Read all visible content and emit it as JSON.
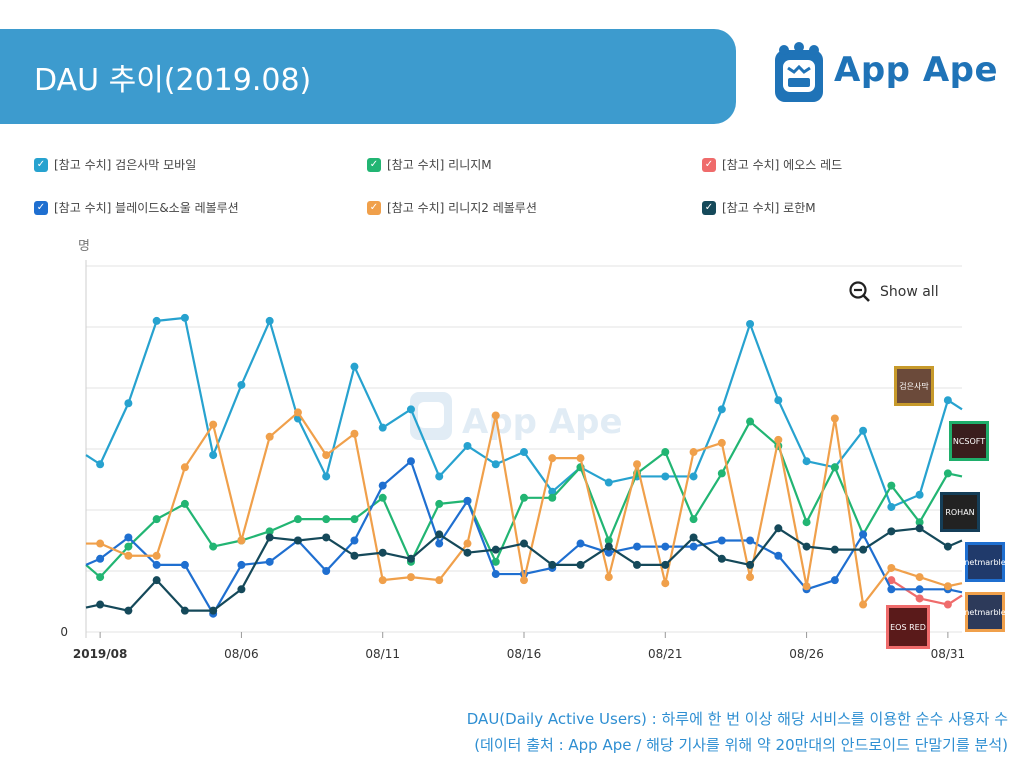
{
  "header": {
    "title": "DAU 추이(2019.08)"
  },
  "brand": {
    "name": "App Ape",
    "color": "#1f73b7"
  },
  "legend": [
    {
      "label": "[참고 수치] 검은사막 모바일",
      "color": "#27a2cf"
    },
    {
      "label": "[참고 수치] 리니지M",
      "color": "#22b573"
    },
    {
      "label": "[참고 수치] 에오스 레드",
      "color": "#ef6b6b"
    },
    {
      "label": "[참고 수치] 블레이드&소울 레볼루션",
      "color": "#1f6fd0"
    },
    {
      "label": "[참고 수치] 리니지2 레볼루션",
      "color": "#f0a04b"
    },
    {
      "label": "[참고 수치] 로한M",
      "color": "#15495a"
    }
  ],
  "show_all": "Show all",
  "watermark": "App Ape",
  "app_icons": [
    {
      "name": "black-desert-icon",
      "text": "검은사막",
      "color": "#c79a2b"
    },
    {
      "name": "lineage-m-icon",
      "text": "NCSOFT",
      "color": "#1fae6b"
    },
    {
      "name": "rohan-icon",
      "text": "ROHAN",
      "color": "#153e58"
    },
    {
      "name": "blade-soul-icon",
      "text": "netmarble",
      "color": "#1f6fd0"
    },
    {
      "name": "lineage2-icon",
      "text": "netmarble",
      "color": "#f0a04b"
    },
    {
      "name": "eos-icon",
      "text": "EOS RED",
      "color": "#ef6b6b"
    }
  ],
  "footnote": {
    "line1": "DAU(Daily Active Users) : 하루에 한 번 이상 해당 서비스를 이용한 순수 사용자 수",
    "line2": "(데이터 출처 : App Ape / 해당 기사를 위해 약 20만대의 안드로이드 단말기를 분석)"
  },
  "chart_data": {
    "type": "line",
    "ylabel": "명",
    "y_tick_labels": [
      "0"
    ],
    "ylim": [
      0,
      6
    ],
    "x_tick_labels": [
      "2019/08",
      "08/06",
      "08/11",
      "08/16",
      "08/21",
      "08/26",
      "08/31"
    ],
    "x_tick_days": [
      1,
      6,
      11,
      16,
      21,
      26,
      31
    ],
    "xlim": [
      0.5,
      31.5
    ],
    "grid": true,
    "x_days": [
      0.5,
      1,
      2,
      3,
      4,
      5,
      6,
      7,
      8,
      9,
      10,
      11,
      12,
      13,
      14,
      15,
      16,
      17,
      18,
      19,
      20,
      21,
      22,
      23,
      24,
      25,
      26,
      27,
      28,
      29,
      30,
      31,
      31.5
    ],
    "series": [
      {
        "name": "[참고 수치] 검은사막 모바일",
        "color": "#27a2cf",
        "values": [
          2.9,
          2.75,
          3.75,
          5.1,
          5.15,
          2.9,
          4.05,
          5.1,
          3.5,
          2.55,
          4.35,
          3.35,
          3.65,
          2.55,
          3.05,
          2.75,
          2.95,
          2.3,
          2.7,
          2.45,
          2.55,
          2.55,
          2.55,
          3.65,
          5.05,
          3.8,
          2.8,
          2.7,
          3.3,
          2.05,
          2.25,
          3.8,
          3.65
        ]
      },
      {
        "name": "[참고 수치] 리니지M",
        "color": "#22b573",
        "values": [
          1.1,
          0.9,
          1.4,
          1.85,
          2.1,
          1.4,
          1.5,
          1.65,
          1.85,
          1.85,
          1.85,
          2.2,
          1.15,
          2.1,
          2.15,
          1.15,
          2.2,
          2.2,
          2.7,
          1.5,
          2.6,
          2.95,
          1.85,
          2.6,
          3.45,
          3.05,
          1.8,
          2.7,
          1.6,
          2.4,
          1.8,
          2.6,
          2.55
        ]
      },
      {
        "name": "[참고 수치] 에오스 레드",
        "color": "#ef6b6b",
        "values": [
          null,
          null,
          null,
          null,
          null,
          null,
          null,
          null,
          null,
          null,
          null,
          null,
          null,
          null,
          null,
          null,
          null,
          null,
          null,
          null,
          null,
          null,
          null,
          null,
          null,
          null,
          null,
          null,
          null,
          0.85,
          0.55,
          0.45,
          0.6
        ]
      },
      {
        "name": "[참고 수치] 블레이드&소울 레볼루션",
        "color": "#1f6fd0",
        "values": [
          1.1,
          1.2,
          1.55,
          1.1,
          1.1,
          0.3,
          1.1,
          1.15,
          1.5,
          1.0,
          1.5,
          2.4,
          2.8,
          1.45,
          2.15,
          0.95,
          0.95,
          1.05,
          1.45,
          1.3,
          1.4,
          1.4,
          1.4,
          1.5,
          1.5,
          1.25,
          0.7,
          0.85,
          1.6,
          0.7,
          0.7,
          0.7,
          0.65
        ]
      },
      {
        "name": "[참고 수치] 리니지2 레볼루션",
        "color": "#f0a04b",
        "values": [
          1.45,
          1.45,
          1.25,
          1.25,
          2.7,
          3.4,
          1.5,
          3.2,
          3.6,
          2.9,
          3.25,
          0.85,
          0.9,
          0.85,
          1.45,
          3.55,
          0.85,
          2.85,
          2.85,
          0.9,
          2.75,
          0.8,
          2.95,
          3.1,
          0.9,
          3.15,
          0.75,
          3.5,
          0.45,
          1.05,
          0.9,
          0.75,
          0.8
        ]
      },
      {
        "name": "[참고 수치] 로한M",
        "color": "#15495a",
        "values": [
          0.4,
          0.45,
          0.35,
          0.85,
          0.35,
          0.35,
          0.7,
          1.55,
          1.5,
          1.55,
          1.25,
          1.3,
          1.2,
          1.6,
          1.3,
          1.35,
          1.45,
          1.1,
          1.1,
          1.4,
          1.1,
          1.1,
          1.55,
          1.2,
          1.1,
          1.7,
          1.4,
          1.35,
          1.35,
          1.65,
          1.7,
          1.4,
          1.5
        ]
      }
    ]
  }
}
